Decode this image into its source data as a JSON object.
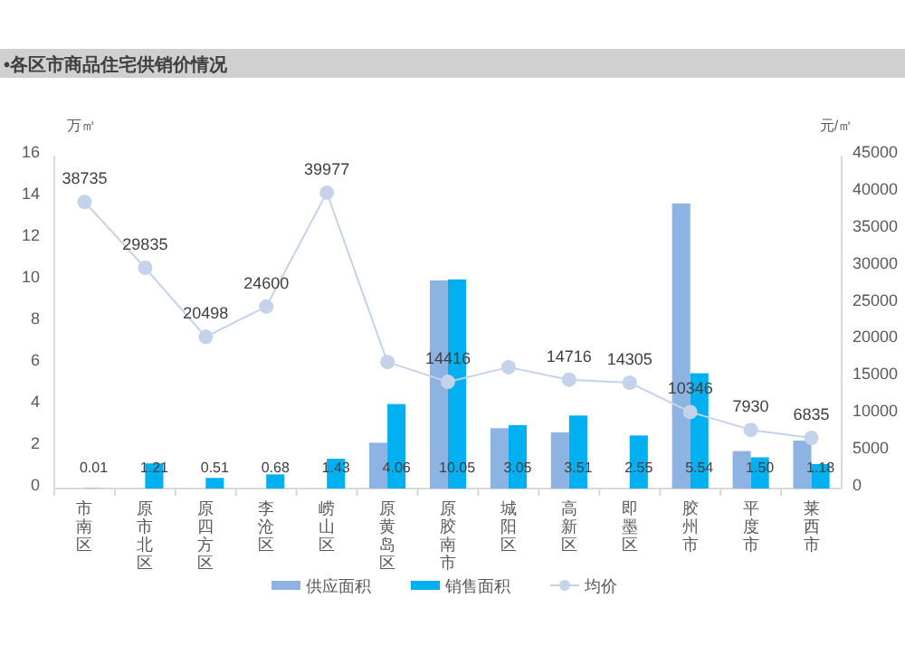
{
  "chart_data": {
    "type": "bar",
    "title": "•各区市商品住宅供销价情况",
    "ylabel": "万㎡",
    "y2label": "元/㎡",
    "categories": [
      "市南区",
      "原市北区",
      "原四方区",
      "李沧区",
      "崂山区",
      "原黄岛区",
      "原胶南市",
      "城阳区",
      "高新区",
      "即墨区",
      "胶州市",
      "平度市",
      "莱西市"
    ],
    "series": [
      {
        "name": "供应面积",
        "type": "bar",
        "color": "#8db3e2",
        "values": [
          0,
          0,
          0,
          0,
          0,
          2.2,
          10.0,
          2.9,
          2.7,
          null,
          13.7,
          1.8,
          2.3
        ]
      },
      {
        "name": "销售面积",
        "type": "bar",
        "color": "#00b0f0",
        "values": [
          0.01,
          1.21,
          0.51,
          0.68,
          1.43,
          4.06,
          10.05,
          3.05,
          3.51,
          2.55,
          5.54,
          1.5,
          1.18
        ],
        "value_labels": [
          "0.01",
          "1.21",
          "0.51",
          "0.68",
          "1.43",
          "4.06",
          "10.05",
          "3.05",
          "3.51",
          "2.55",
          "5.54",
          "1.50",
          "1.18"
        ]
      },
      {
        "name": "均价",
        "type": "line",
        "axis": "y2",
        "color": "#c5d3ea",
        "marker": "circle",
        "values": [
          38735,
          29835,
          20498,
          24600,
          39977,
          17100,
          14416,
          16400,
          14716,
          14305,
          10346,
          7930,
          6835
        ],
        "value_labels": [
          "38735",
          "29835",
          "20498",
          "24600",
          "39977",
          null,
          "14416",
          null,
          "14716",
          "14305",
          "10346",
          "7930",
          "6835"
        ]
      }
    ],
    "ylim": [
      0,
      16
    ],
    "yticks": [
      0,
      2,
      4,
      6,
      8,
      10,
      12,
      14,
      16
    ],
    "y2lim": [
      0,
      45000
    ],
    "y2ticks": [
      0,
      5000,
      10000,
      15000,
      20000,
      25000,
      30000,
      35000,
      40000,
      45000
    ],
    "legend": "bottom",
    "grid": false
  }
}
